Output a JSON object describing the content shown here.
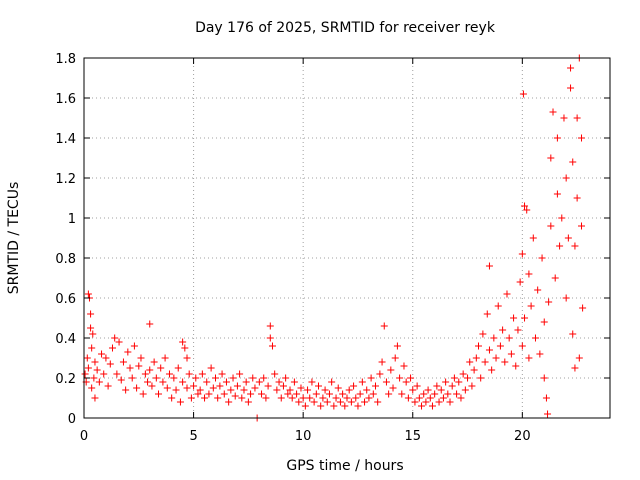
{
  "chart_data": {
    "type": "scatter",
    "title": "Day 176 of 2025, SRMTID for receiver reyk",
    "xlabel": "GPS time / hours",
    "ylabel": "SRMTID / TECUs",
    "xlim": [
      0,
      24
    ],
    "ylim": [
      0,
      1.8
    ],
    "xticks": [
      0,
      5,
      10,
      15,
      20
    ],
    "yticks": [
      0,
      0.2,
      0.4,
      0.6,
      0.8,
      1.0,
      1.2,
      1.4,
      1.6,
      1.8
    ],
    "xtick_labels": [
      "0",
      "5",
      "10",
      "15",
      "20"
    ],
    "ytick_labels": [
      "0",
      "0.2",
      "0.4",
      "0.6",
      "0.8",
      "1",
      "1.2",
      "1.4",
      "1.6",
      "1.8"
    ],
    "grid": true,
    "marker": "+",
    "color": "#ff0000",
    "series": [
      {
        "name": "SRMTID",
        "points": [
          [
            0.05,
            0.22
          ],
          [
            0.1,
            0.18
          ],
          [
            0.15,
            0.3
          ],
          [
            0.2,
            0.25
          ],
          [
            0.2,
            0.62
          ],
          [
            0.25,
            0.6
          ],
          [
            0.3,
            0.52
          ],
          [
            0.3,
            0.45
          ],
          [
            0.35,
            0.35
          ],
          [
            0.35,
            0.15
          ],
          [
            0.4,
            0.42
          ],
          [
            0.45,
            0.2
          ],
          [
            0.5,
            0.28
          ],
          [
            0.5,
            0.1
          ],
          [
            0.6,
            0.24
          ],
          [
            0.7,
            0.18
          ],
          [
            0.8,
            0.32
          ],
          [
            0.9,
            0.22
          ],
          [
            1.0,
            0.3
          ],
          [
            1.1,
            0.16
          ],
          [
            1.2,
            0.27
          ],
          [
            1.3,
            0.35
          ],
          [
            1.4,
            0.4
          ],
          [
            1.5,
            0.22
          ],
          [
            1.6,
            0.38
          ],
          [
            1.7,
            0.19
          ],
          [
            1.8,
            0.28
          ],
          [
            1.9,
            0.14
          ],
          [
            2.0,
            0.33
          ],
          [
            2.1,
            0.25
          ],
          [
            2.2,
            0.2
          ],
          [
            2.3,
            0.36
          ],
          [
            2.4,
            0.15
          ],
          [
            2.5,
            0.26
          ],
          [
            2.6,
            0.3
          ],
          [
            2.7,
            0.12
          ],
          [
            2.8,
            0.22
          ],
          [
            2.9,
            0.18
          ],
          [
            3.0,
            0.47
          ],
          [
            3.0,
            0.24
          ],
          [
            3.1,
            0.16
          ],
          [
            3.2,
            0.28
          ],
          [
            3.3,
            0.2
          ],
          [
            3.4,
            0.12
          ],
          [
            3.5,
            0.25
          ],
          [
            3.6,
            0.18
          ],
          [
            3.7,
            0.3
          ],
          [
            3.8,
            0.15
          ],
          [
            3.9,
            0.22
          ],
          [
            4.0,
            0.1
          ],
          [
            4.1,
            0.2
          ],
          [
            4.2,
            0.14
          ],
          [
            4.3,
            0.25
          ],
          [
            4.4,
            0.08
          ],
          [
            4.5,
            0.18
          ],
          [
            4.5,
            0.38
          ],
          [
            4.6,
            0.35
          ],
          [
            4.7,
            0.3
          ],
          [
            4.7,
            0.15
          ],
          [
            4.8,
            0.22
          ],
          [
            4.9,
            0.1
          ],
          [
            5.0,
            0.16
          ],
          [
            5.1,
            0.2
          ],
          [
            5.2,
            0.12
          ],
          [
            5.3,
            0.14
          ],
          [
            5.4,
            0.22
          ],
          [
            5.5,
            0.1
          ],
          [
            5.6,
            0.18
          ],
          [
            5.7,
            0.12
          ],
          [
            5.8,
            0.25
          ],
          [
            5.9,
            0.15
          ],
          [
            6.0,
            0.2
          ],
          [
            6.1,
            0.1
          ],
          [
            6.2,
            0.16
          ],
          [
            6.3,
            0.22
          ],
          [
            6.4,
            0.12
          ],
          [
            6.5,
            0.18
          ],
          [
            6.6,
            0.08
          ],
          [
            6.7,
            0.14
          ],
          [
            6.8,
            0.2
          ],
          [
            6.9,
            0.11
          ],
          [
            7.0,
            0.16
          ],
          [
            7.1,
            0.22
          ],
          [
            7.2,
            0.1
          ],
          [
            7.3,
            0.14
          ],
          [
            7.4,
            0.18
          ],
          [
            7.5,
            0.08
          ],
          [
            7.6,
            0.12
          ],
          [
            7.7,
            0.2
          ],
          [
            7.8,
            0.15
          ],
          [
            7.9,
            0.0
          ],
          [
            8.0,
            0.18
          ],
          [
            8.1,
            0.12
          ],
          [
            8.2,
            0.2
          ],
          [
            8.3,
            0.1
          ],
          [
            8.4,
            0.16
          ],
          [
            8.5,
            0.46
          ],
          [
            8.5,
            0.4
          ],
          [
            8.6,
            0.36
          ],
          [
            8.7,
            0.22
          ],
          [
            8.8,
            0.14
          ],
          [
            8.9,
            0.18
          ],
          [
            9.0,
            0.1
          ],
          [
            9.1,
            0.16
          ],
          [
            9.2,
            0.2
          ],
          [
            9.3,
            0.12
          ],
          [
            9.4,
            0.14
          ],
          [
            9.5,
            0.1
          ],
          [
            9.6,
            0.18
          ],
          [
            9.7,
            0.12
          ],
          [
            9.8,
            0.08
          ],
          [
            9.9,
            0.15
          ],
          [
            10.0,
            0.1
          ],
          [
            10.1,
            0.06
          ],
          [
            10.2,
            0.14
          ],
          [
            10.3,
            0.1
          ],
          [
            10.4,
            0.18
          ],
          [
            10.5,
            0.08
          ],
          [
            10.6,
            0.12
          ],
          [
            10.7,
            0.16
          ],
          [
            10.8,
            0.06
          ],
          [
            10.9,
            0.1
          ],
          [
            11.0,
            0.14
          ],
          [
            11.1,
            0.08
          ],
          [
            11.2,
            0.12
          ],
          [
            11.3,
            0.18
          ],
          [
            11.4,
            0.06
          ],
          [
            11.5,
            0.1
          ],
          [
            11.6,
            0.15
          ],
          [
            11.7,
            0.08
          ],
          [
            11.8,
            0.12
          ],
          [
            11.9,
            0.06
          ],
          [
            12.0,
            0.1
          ],
          [
            12.1,
            0.14
          ],
          [
            12.2,
            0.08
          ],
          [
            12.3,
            0.16
          ],
          [
            12.4,
            0.1
          ],
          [
            12.5,
            0.06
          ],
          [
            12.6,
            0.12
          ],
          [
            12.7,
            0.18
          ],
          [
            12.8,
            0.08
          ],
          [
            12.9,
            0.14
          ],
          [
            13.0,
            0.1
          ],
          [
            13.1,
            0.2
          ],
          [
            13.2,
            0.12
          ],
          [
            13.3,
            0.16
          ],
          [
            13.4,
            0.08
          ],
          [
            13.5,
            0.22
          ],
          [
            13.6,
            0.28
          ],
          [
            13.7,
            0.46
          ],
          [
            13.8,
            0.18
          ],
          [
            13.9,
            0.12
          ],
          [
            14.0,
            0.24
          ],
          [
            14.1,
            0.15
          ],
          [
            14.2,
            0.3
          ],
          [
            14.3,
            0.36
          ],
          [
            14.4,
            0.2
          ],
          [
            14.5,
            0.12
          ],
          [
            14.6,
            0.26
          ],
          [
            14.7,
            0.18
          ],
          [
            14.8,
            0.1
          ],
          [
            14.9,
            0.2
          ],
          [
            15.0,
            0.14
          ],
          [
            15.1,
            0.08
          ],
          [
            15.2,
            0.16
          ],
          [
            15.3,
            0.1
          ],
          [
            15.4,
            0.06
          ],
          [
            15.5,
            0.12
          ],
          [
            15.6,
            0.08
          ],
          [
            15.7,
            0.14
          ],
          [
            15.8,
            0.1
          ],
          [
            15.9,
            0.06
          ],
          [
            16.0,
            0.12
          ],
          [
            16.1,
            0.16
          ],
          [
            16.2,
            0.08
          ],
          [
            16.3,
            0.14
          ],
          [
            16.4,
            0.1
          ],
          [
            16.5,
            0.18
          ],
          [
            16.6,
            0.12
          ],
          [
            16.7,
            0.08
          ],
          [
            16.8,
            0.16
          ],
          [
            16.9,
            0.2
          ],
          [
            17.0,
            0.12
          ],
          [
            17.1,
            0.18
          ],
          [
            17.2,
            0.1
          ],
          [
            17.3,
            0.22
          ],
          [
            17.4,
            0.14
          ],
          [
            17.5,
            0.2
          ],
          [
            17.6,
            0.28
          ],
          [
            17.7,
            0.16
          ],
          [
            17.8,
            0.24
          ],
          [
            17.9,
            0.3
          ],
          [
            18.0,
            0.36
          ],
          [
            18.1,
            0.2
          ],
          [
            18.2,
            0.42
          ],
          [
            18.3,
            0.28
          ],
          [
            18.4,
            0.52
          ],
          [
            18.5,
            0.34
          ],
          [
            18.5,
            0.76
          ],
          [
            18.6,
            0.24
          ],
          [
            18.7,
            0.4
          ],
          [
            18.8,
            0.3
          ],
          [
            18.9,
            0.56
          ],
          [
            19.0,
            0.36
          ],
          [
            19.1,
            0.44
          ],
          [
            19.2,
            0.28
          ],
          [
            19.3,
            0.62
          ],
          [
            19.4,
            0.4
          ],
          [
            19.5,
            0.32
          ],
          [
            19.6,
            0.5
          ],
          [
            19.7,
            0.26
          ],
          [
            19.8,
            0.44
          ],
          [
            19.9,
            0.68
          ],
          [
            20.0,
            0.36
          ],
          [
            20.0,
            0.82
          ],
          [
            20.05,
            1.62
          ],
          [
            20.1,
            0.5
          ],
          [
            20.1,
            1.06
          ],
          [
            20.2,
            1.04
          ],
          [
            20.3,
            0.3
          ],
          [
            20.3,
            0.72
          ],
          [
            20.4,
            0.56
          ],
          [
            20.5,
            0.9
          ],
          [
            20.6,
            0.4
          ],
          [
            20.7,
            0.64
          ],
          [
            20.8,
            0.32
          ],
          [
            20.9,
            0.8
          ],
          [
            21.0,
            0.48
          ],
          [
            21.0,
            0.2
          ],
          [
            21.1,
            0.1
          ],
          [
            21.15,
            0.02
          ],
          [
            21.2,
            0.58
          ],
          [
            21.3,
            0.96
          ],
          [
            21.3,
            1.3
          ],
          [
            21.4,
            1.53
          ],
          [
            21.5,
            0.7
          ],
          [
            21.6,
            1.4
          ],
          [
            21.6,
            1.12
          ],
          [
            21.7,
            0.86
          ],
          [
            21.8,
            1.0
          ],
          [
            21.9,
            1.5
          ],
          [
            22.0,
            0.6
          ],
          [
            22.0,
            1.2
          ],
          [
            22.1,
            0.9
          ],
          [
            22.2,
            1.65
          ],
          [
            22.2,
            1.75
          ],
          [
            22.3,
            0.42
          ],
          [
            22.3,
            1.28
          ],
          [
            22.4,
            0.86
          ],
          [
            22.4,
            0.25
          ],
          [
            22.5,
            1.5
          ],
          [
            22.5,
            1.1
          ],
          [
            22.6,
            1.8
          ],
          [
            22.6,
            0.3
          ],
          [
            22.7,
            1.4
          ],
          [
            22.7,
            0.96
          ],
          [
            22.75,
            0.55
          ]
        ]
      }
    ]
  }
}
